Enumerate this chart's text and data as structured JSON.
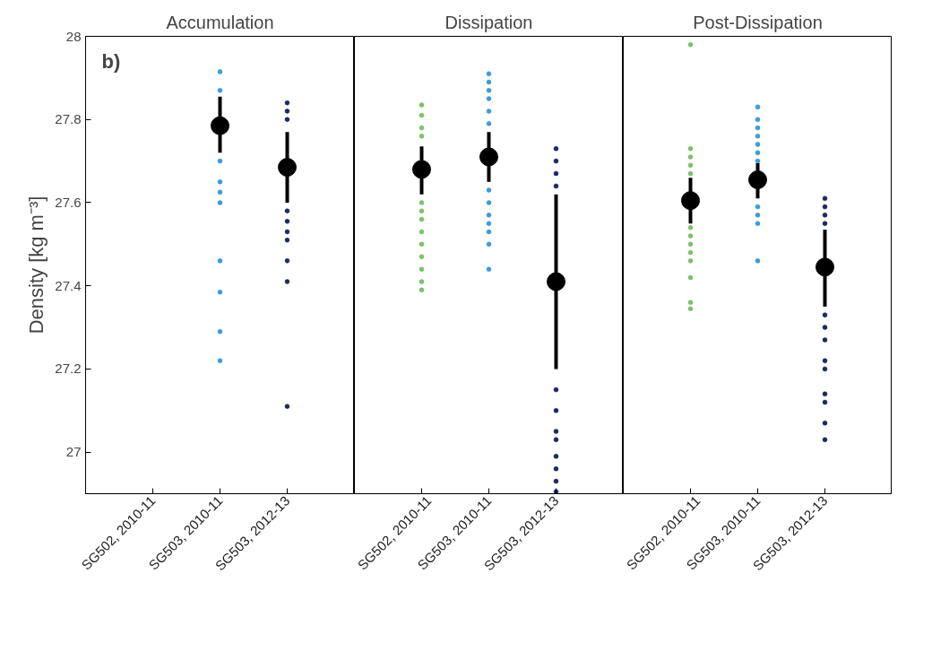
{
  "chart_data": [
    {
      "type": "scatter",
      "title": "Accumulation",
      "ylabel": "Density [kg m⁻³]",
      "annotations": [
        "b)"
      ],
      "categories": [
        "SG502, 2010-11",
        "SG503, 2010-11",
        "SG503, 2012-13"
      ],
      "ylim": [
        26.9,
        28
      ],
      "yticks": [
        27,
        27.2,
        27.4,
        27.6,
        27.8,
        28
      ],
      "marker": "circle",
      "series": [
        {
          "color": "#3d9bd6",
          "x": [
            "SG503, 2010-11",
            "SG503, 2010-11",
            "SG503, 2010-11",
            "SG503, 2010-11",
            "SG503, 2010-11",
            "SG503, 2010-11",
            "SG503, 2010-11",
            "SG503, 2010-11",
            "SG503, 2010-11",
            "SG503, 2010-11"
          ],
          "values": [
            27.915,
            27.87,
            27.7,
            27.65,
            27.625,
            27.6,
            27.46,
            27.385,
            27.29,
            27.22
          ]
        },
        {
          "color": "#1b2a5e",
          "x": [
            "SG503, 2012-13",
            "SG503, 2012-13",
            "SG503, 2012-13",
            "SG503, 2012-13",
            "SG503, 2012-13",
            "SG503, 2012-13",
            "SG503, 2012-13",
            "SG503, 2012-13",
            "SG503, 2012-13",
            "SG503, 2012-13"
          ],
          "values": [
            27.84,
            27.82,
            27.8,
            27.58,
            27.555,
            27.53,
            27.51,
            27.46,
            27.41,
            27.11
          ]
        },
        {
          "color": "#000000",
          "x": [
            "SG503, 2010-11",
            "SG503, 2012-13"
          ],
          "values": [
            27.785,
            27.685
          ],
          "errors": [
            [
              27.72,
              27.855
            ],
            [
              27.6,
              27.77
            ]
          ]
        }
      ]
    },
    {
      "type": "scatter",
      "title": "Dissipation",
      "categories": [
        "SG502, 2010-11",
        "SG503, 2010-11",
        "SG503, 2012-13"
      ],
      "ylim": [
        26.9,
        28
      ],
      "yticks": [
        27,
        27.2,
        27.4,
        27.6,
        27.8,
        28
      ],
      "tick_labels": "x",
      "marker": "circle",
      "series": [
        {
          "color": "#7cc06a",
          "x": [
            "SG502, 2010-11",
            "SG502, 2010-11",
            "SG502, 2010-11",
            "SG502, 2010-11",
            "SG502, 2010-11",
            "SG502, 2010-11",
            "SG502, 2010-11",
            "SG502, 2010-11",
            "SG502, 2010-11",
            "SG502, 2010-11",
            "SG502, 2010-11",
            "SG502, 2010-11",
            "SG502, 2010-11"
          ],
          "values": [
            27.835,
            27.81,
            27.78,
            27.76,
            27.6,
            27.58,
            27.56,
            27.53,
            27.5,
            27.47,
            27.44,
            27.41,
            27.39
          ]
        },
        {
          "color": "#3d9bd6",
          "x": [
            "SG503, 2010-11",
            "SG503, 2010-11",
            "SG503, 2010-11",
            "SG503, 2010-11",
            "SG503, 2010-11",
            "SG503, 2010-11",
            "SG503, 2010-11",
            "SG503, 2010-11",
            "SG503, 2010-11",
            "SG503, 2010-11",
            "SG503, 2010-11",
            "SG503, 2010-11",
            "SG503, 2010-11"
          ],
          "values": [
            27.91,
            27.89,
            27.87,
            27.85,
            27.82,
            27.79,
            27.63,
            27.6,
            27.57,
            27.55,
            27.53,
            27.5,
            27.44
          ]
        },
        {
          "color": "#1b2a5e",
          "x": [
            "SG503, 2012-13",
            "SG503, 2012-13",
            "SG503, 2012-13",
            "SG503, 2012-13",
            "SG503, 2012-13",
            "SG503, 2012-13",
            "SG503, 2012-13",
            "SG503, 2012-13",
            "SG503, 2012-13",
            "SG503, 2012-13",
            "SG503, 2012-13",
            "SG503, 2012-13"
          ],
          "values": [
            27.73,
            27.7,
            27.67,
            27.64,
            27.15,
            27.1,
            27.05,
            27.03,
            26.99,
            26.96,
            26.93,
            26.905
          ]
        },
        {
          "color": "#000000",
          "x": [
            "SG502, 2010-11",
            "SG503, 2010-11",
            "SG503, 2012-13"
          ],
          "values": [
            27.68,
            27.71,
            27.41
          ],
          "errors": [
            [
              27.62,
              27.735
            ],
            [
              27.65,
              27.77
            ],
            [
              27.2,
              27.62
            ]
          ]
        }
      ]
    },
    {
      "type": "scatter",
      "title": "Post-Dissipation",
      "categories": [
        "SG502, 2010-11",
        "SG503, 2010-11",
        "SG503, 2012-13"
      ],
      "ylim": [
        26.9,
        28
      ],
      "yticks": [
        27,
        27.2,
        27.4,
        27.6,
        27.8,
        28
      ],
      "tick_labels": "x",
      "marker": "circle",
      "series": [
        {
          "color": "#7cc06a",
          "x": [
            "SG502, 2010-11",
            "SG502, 2010-11",
            "SG502, 2010-11",
            "SG502, 2010-11",
            "SG502, 2010-11",
            "SG502, 2010-11",
            "SG502, 2010-11",
            "SG502, 2010-11",
            "SG502, 2010-11",
            "SG502, 2010-11",
            "SG502, 2010-11",
            "SG502, 2010-11",
            "SG502, 2010-11"
          ],
          "values": [
            27.98,
            27.73,
            27.71,
            27.69,
            27.67,
            27.54,
            27.52,
            27.5,
            27.48,
            27.46,
            27.42,
            27.36,
            27.345
          ]
        },
        {
          "color": "#3d9bd6",
          "x": [
            "SG503, 2010-11",
            "SG503, 2010-11",
            "SG503, 2010-11",
            "SG503, 2010-11",
            "SG503, 2010-11",
            "SG503, 2010-11",
            "SG503, 2010-11",
            "SG503, 2010-11",
            "SG503, 2010-11",
            "SG503, 2010-11",
            "SG503, 2010-11"
          ],
          "values": [
            27.83,
            27.8,
            27.78,
            27.76,
            27.74,
            27.72,
            27.7,
            27.59,
            27.57,
            27.55,
            27.46
          ]
        },
        {
          "color": "#1b2a5e",
          "x": [
            "SG503, 2012-13",
            "SG503, 2012-13",
            "SG503, 2012-13",
            "SG503, 2012-13",
            "SG503, 2012-13",
            "SG503, 2012-13",
            "SG503, 2012-13",
            "SG503, 2012-13",
            "SG503, 2012-13",
            "SG503, 2012-13",
            "SG503, 2012-13",
            "SG503, 2012-13",
            "SG503, 2012-13"
          ],
          "values": [
            27.61,
            27.59,
            27.57,
            27.55,
            27.33,
            27.3,
            27.27,
            27.22,
            27.2,
            27.14,
            27.12,
            27.07,
            27.03
          ]
        },
        {
          "color": "#000000",
          "x": [
            "SG502, 2010-11",
            "SG503, 2010-11",
            "SG503, 2012-13"
          ],
          "values": [
            27.605,
            27.655,
            27.445
          ],
          "errors": [
            [
              27.55,
              27.66
            ],
            [
              27.61,
              27.695
            ],
            [
              27.35,
              27.535
            ]
          ]
        }
      ]
    }
  ]
}
